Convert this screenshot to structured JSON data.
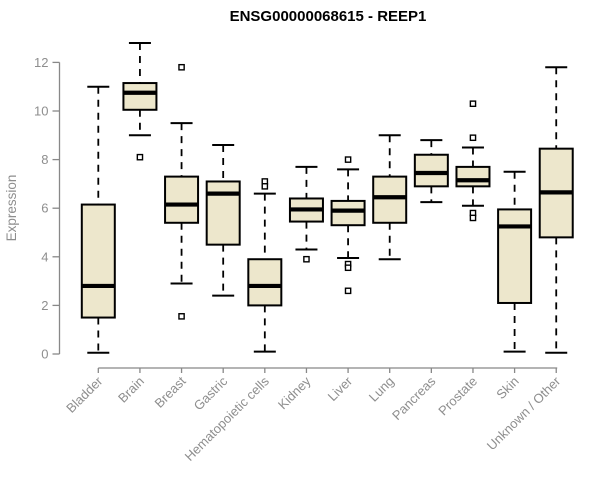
{
  "chart_data": {
    "type": "boxplot",
    "title": "ENSG00000068615 - REEP1",
    "xlabel": "",
    "ylabel": "Expression",
    "ylim": [
      0,
      12
    ],
    "yticks": [
      0,
      2,
      4,
      6,
      8,
      10,
      12
    ],
    "grid": false,
    "legend": "none",
    "categories": [
      "Bladder",
      "Brain",
      "Breast",
      "Gastric",
      "Hematopoietic cells",
      "Kidney",
      "Liver",
      "Lung",
      "Pancreas",
      "Prostate",
      "Skin",
      "Unknown / Other"
    ],
    "boxes": [
      {
        "category": "Bladder",
        "whisker_low": 0.05,
        "q1": 1.5,
        "median": 2.8,
        "q3": 6.15,
        "whisker_high": 11.0,
        "outliers": []
      },
      {
        "category": "Brain",
        "whisker_low": 9.0,
        "q1": 10.05,
        "median": 10.75,
        "q3": 11.15,
        "whisker_high": 12.8,
        "outliers": [
          8.1
        ]
      },
      {
        "category": "Breast",
        "whisker_low": 2.9,
        "q1": 5.4,
        "median": 6.15,
        "q3": 7.3,
        "whisker_high": 9.5,
        "outliers": [
          11.8,
          1.55
        ]
      },
      {
        "category": "Gastric",
        "whisker_low": 2.4,
        "q1": 4.5,
        "median": 6.6,
        "q3": 7.1,
        "whisker_high": 8.6,
        "outliers": []
      },
      {
        "category": "Hematopoietic cells",
        "whisker_low": 0.1,
        "q1": 2.0,
        "median": 2.8,
        "q3": 3.9,
        "whisker_high": 6.6,
        "outliers": [
          7.1,
          6.9
        ]
      },
      {
        "category": "Kidney",
        "whisker_low": 4.3,
        "q1": 5.45,
        "median": 5.95,
        "q3": 6.4,
        "whisker_high": 7.7,
        "outliers": [
          3.9
        ]
      },
      {
        "category": "Liver",
        "whisker_low": 3.95,
        "q1": 5.3,
        "median": 5.9,
        "q3": 6.3,
        "whisker_high": 7.6,
        "outliers": [
          8.0,
          3.7,
          3.55,
          2.6
        ]
      },
      {
        "category": "Lung",
        "whisker_low": 3.9,
        "q1": 5.4,
        "median": 6.45,
        "q3": 7.3,
        "whisker_high": 9.0,
        "outliers": []
      },
      {
        "category": "Pancreas",
        "whisker_low": 6.25,
        "q1": 6.9,
        "median": 7.45,
        "q3": 8.2,
        "whisker_high": 8.8,
        "outliers": []
      },
      {
        "category": "Prostate",
        "whisker_low": 6.1,
        "q1": 6.9,
        "median": 7.15,
        "q3": 7.7,
        "whisker_high": 8.5,
        "outliers": [
          10.3,
          8.9,
          5.8,
          5.6
        ]
      },
      {
        "category": "Skin",
        "whisker_low": 0.1,
        "q1": 2.1,
        "median": 5.25,
        "q3": 5.95,
        "whisker_high": 7.5,
        "outliers": []
      },
      {
        "category": "Unknown / Other",
        "whisker_low": 0.05,
        "q1": 4.8,
        "median": 6.65,
        "q3": 8.45,
        "whisker_high": 11.8,
        "outliers": []
      }
    ],
    "colors": {
      "background": "#ffffff",
      "box_fill": "#EDE7CC",
      "box_border": "#000000",
      "median": "#000000",
      "whisker": "#000000",
      "outlier_fill": "#ffffff",
      "axis": "#888888",
      "text_gray": "#8e8e8e",
      "title": "#000000"
    }
  }
}
